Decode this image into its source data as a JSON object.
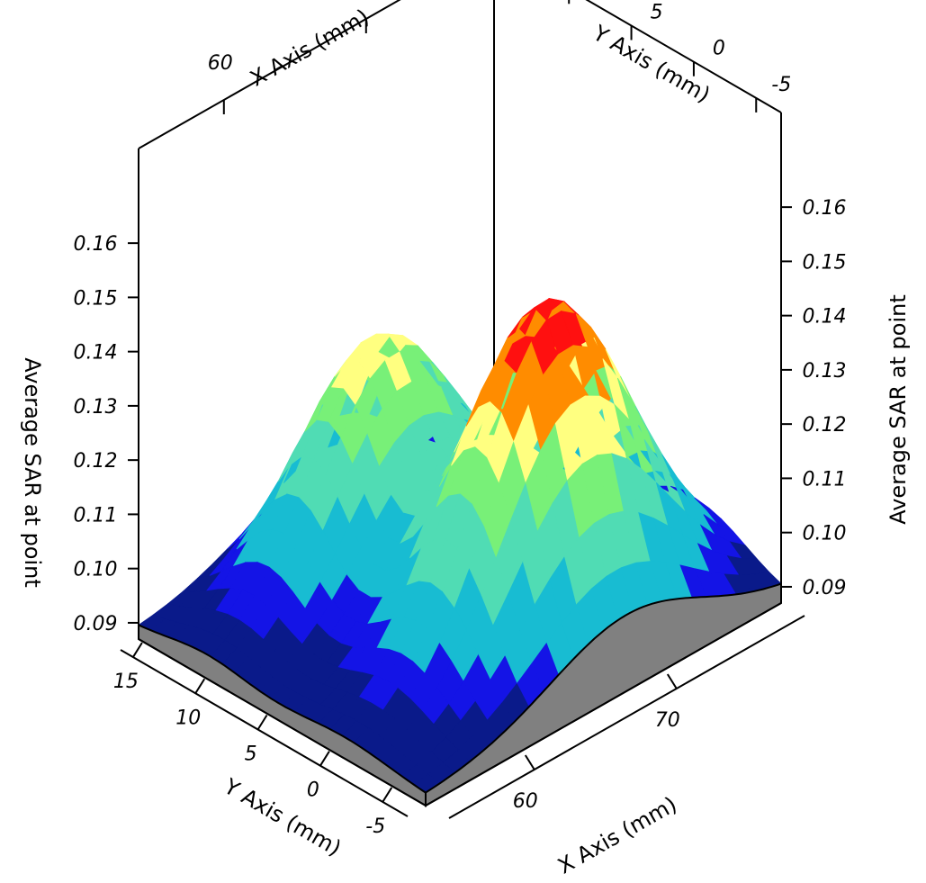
{
  "chart_data": {
    "type": "surface3d",
    "title": "",
    "x_axis": {
      "label": "X Axis (mm)",
      "range": [
        54,
        79
      ],
      "ticks": [
        60,
        70
      ]
    },
    "y_axis": {
      "label": "Y Axis (mm)",
      "range": [
        -7,
        16
      ],
      "ticks": [
        15,
        10,
        5,
        0,
        -5
      ]
    },
    "z_axis": {
      "label": "Average SAR at point",
      "range": [
        0.087,
        0.165
      ],
      "ticks": [
        0.09,
        0.1,
        0.11,
        0.12,
        0.13,
        0.14,
        0.15,
        0.16
      ]
    },
    "peaks": [
      {
        "x": 72,
        "y": 3,
        "z": 0.15
      },
      {
        "x": 60,
        "y": 5,
        "z": 0.132
      }
    ],
    "color_bands": [
      {
        "max": 0.095,
        "color": "#0a1a8a"
      },
      {
        "max": 0.1,
        "color": "#1414e6"
      },
      {
        "max": 0.11,
        "color": "#18bcd2"
      },
      {
        "max": 0.12,
        "color": "#50dcb4"
      },
      {
        "max": 0.128,
        "color": "#78f078"
      },
      {
        "max": 0.135,
        "color": "#ffff80"
      },
      {
        "max": 0.145,
        "color": "#ff8c00"
      },
      {
        "max": 1.0,
        "color": "#ff1010"
      }
    ],
    "side_face_color": "#808080",
    "grid": true
  }
}
